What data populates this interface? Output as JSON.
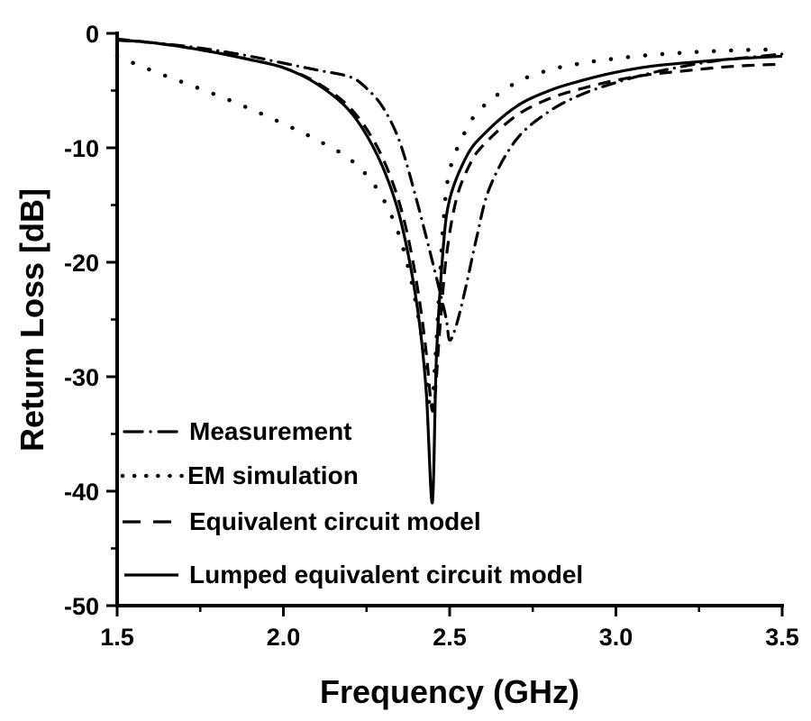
{
  "chart_data": {
    "type": "line",
    "title": "",
    "xlabel": "Frequency (GHz)",
    "ylabel": "Return Loss [dB]",
    "xlim": [
      1.5,
      3.5
    ],
    "ylim": [
      -50,
      0
    ],
    "xticks": [
      1.5,
      2.0,
      2.5,
      3.0,
      3.5
    ],
    "xtick_labels": [
      "1.5",
      "2.0",
      "2.5",
      "3.0",
      "3.5"
    ],
    "yticks": [
      0,
      -10,
      -20,
      -30,
      -40,
      -50
    ],
    "ytick_labels": [
      "0",
      "-10",
      "-20",
      "-30",
      "-40",
      "-50"
    ],
    "grid": false,
    "legend_position": "bottom-left",
    "series": [
      {
        "name": "Measurement",
        "style": "dash-dot",
        "x": [
          1.5,
          1.6,
          1.7,
          1.8,
          1.9,
          2.0,
          2.1,
          2.2,
          2.25,
          2.3,
          2.35,
          2.4,
          2.44,
          2.47,
          2.49,
          2.5,
          2.52,
          2.55,
          2.58,
          2.62,
          2.7,
          2.8,
          2.9,
          3.0,
          3.1,
          3.2,
          3.3,
          3.4,
          3.5
        ],
        "y": [
          -0.6,
          -0.8,
          -1.1,
          -1.5,
          -2.0,
          -2.6,
          -3.2,
          -3.8,
          -4.8,
          -6.5,
          -9.5,
          -14.5,
          -19.0,
          -22.5,
          -25.0,
          -26.8,
          -25.5,
          -22.0,
          -18.0,
          -13.5,
          -9.3,
          -6.8,
          -5.3,
          -4.3,
          -3.5,
          -2.9,
          -2.4,
          -2.1,
          -1.8
        ]
      },
      {
        "name": "EM simulation",
        "style": "dotted",
        "x": [
          1.5,
          1.6,
          1.7,
          1.8,
          1.9,
          2.0,
          2.1,
          2.2,
          2.28,
          2.34,
          2.38,
          2.41,
          2.43,
          2.445,
          2.46,
          2.48,
          2.5,
          2.55,
          2.6,
          2.7,
          2.8,
          2.9,
          3.0,
          3.1,
          3.2,
          3.3,
          3.4,
          3.5
        ],
        "y": [
          -2.0,
          -3.2,
          -4.3,
          -5.4,
          -6.6,
          -7.9,
          -9.3,
          -11.0,
          -13.5,
          -17.0,
          -21.0,
          -25.5,
          -30.0,
          -33.0,
          -27.0,
          -17.0,
          -12.0,
          -8.4,
          -6.4,
          -4.3,
          -3.2,
          -2.6,
          -2.2,
          -1.9,
          -1.7,
          -1.55,
          -1.45,
          -1.4
        ]
      },
      {
        "name": "Equivalent circuit model",
        "style": "dashed",
        "x": [
          1.5,
          1.6,
          1.7,
          1.8,
          1.9,
          2.0,
          2.1,
          2.2,
          2.28,
          2.34,
          2.38,
          2.41,
          2.43,
          2.45,
          2.47,
          2.49,
          2.52,
          2.56,
          2.6,
          2.7,
          2.8,
          2.9,
          3.0,
          3.1,
          3.2,
          3.3,
          3.4,
          3.5
        ],
        "y": [
          -0.5,
          -0.8,
          -1.2,
          -1.7,
          -2.3,
          -3.0,
          -4.3,
          -6.5,
          -9.8,
          -14.0,
          -18.5,
          -23.5,
          -28.0,
          -33.0,
          -26.0,
          -19.5,
          -14.5,
          -11.5,
          -9.8,
          -7.2,
          -5.7,
          -4.8,
          -4.1,
          -3.6,
          -3.3,
          -3.0,
          -2.8,
          -2.7
        ]
      },
      {
        "name": "Lumped equivalent circuit model",
        "style": "solid",
        "x": [
          1.5,
          1.6,
          1.7,
          1.8,
          1.9,
          2.0,
          2.1,
          2.2,
          2.28,
          2.34,
          2.38,
          2.41,
          2.43,
          2.448,
          2.46,
          2.48,
          2.5,
          2.55,
          2.6,
          2.7,
          2.8,
          2.9,
          3.0,
          3.1,
          3.2,
          3.3,
          3.4,
          3.5
        ],
        "y": [
          -0.55,
          -0.8,
          -1.2,
          -1.7,
          -2.3,
          -3.0,
          -4.4,
          -6.8,
          -10.5,
          -15.0,
          -20.0,
          -25.5,
          -31.5,
          -41.0,
          -28.5,
          -19.0,
          -14.5,
          -10.8,
          -8.9,
          -6.4,
          -5.0,
          -4.1,
          -3.4,
          -2.9,
          -2.6,
          -2.35,
          -2.15,
          -2.0
        ]
      }
    ]
  },
  "colors": {
    "line": "#000000",
    "background": "#ffffff"
  }
}
